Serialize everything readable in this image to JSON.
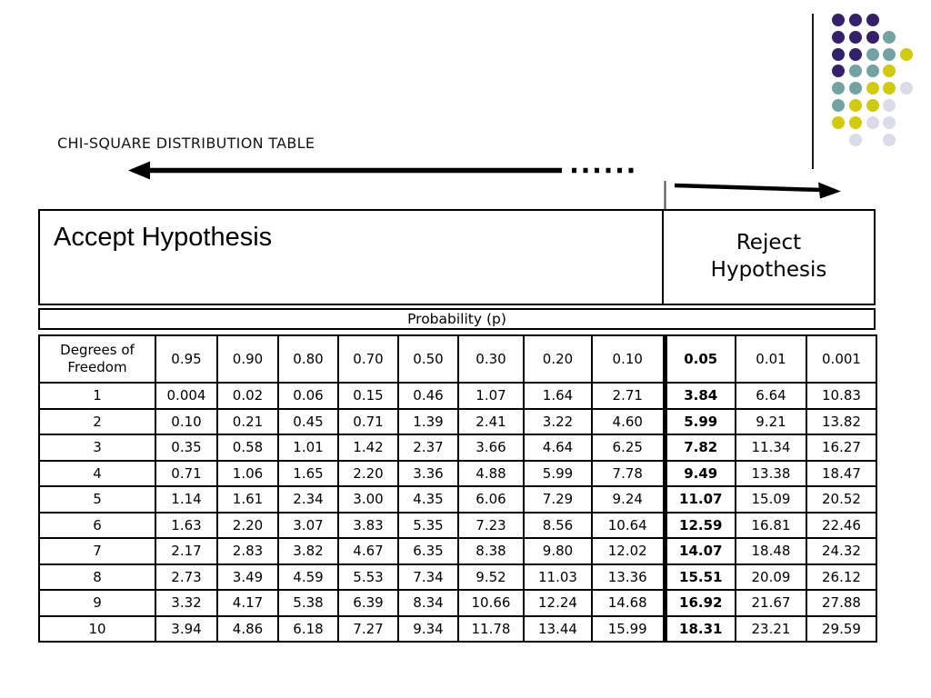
{
  "slide": {
    "title": "CHI-SQUARE DISTRIBUTION TABLE"
  },
  "decor": {
    "dot_colors": {
      "P": "#35206b",
      "T": "#74a2a2",
      "Y": "#d0ca12",
      "L": "#dbdbe9"
    },
    "dot_pattern": [
      "PPP..",
      "PPPT.",
      "PPTTY",
      "PTTY.",
      "TTYYL",
      "TYYL.",
      "YYLL.",
      ".L.L."
    ],
    "icons": [
      "accept-direction-arrow",
      "dashed-arrow-tail",
      "reject-direction-arrow"
    ]
  },
  "regions": {
    "accept_label": "Accept Hypothesis",
    "reject_label": "Reject Hypothesis"
  },
  "table": {
    "probability_label": "Probability (p)",
    "dof_header": "Degrees of Freedom",
    "prob_columns": [
      "0.95",
      "0.90",
      "0.80",
      "0.70",
      "0.50",
      "0.30",
      "0.20",
      "0.10",
      "0.05",
      "0.01",
      "0.001"
    ],
    "bold_column_index": 8,
    "rows": [
      {
        "df": "1",
        "values": [
          "0.004",
          "0.02",
          "0.06",
          "0.15",
          "0.46",
          "1.07",
          "1.64",
          "2.71",
          "3.84",
          "6.64",
          "10.83"
        ]
      },
      {
        "df": "2",
        "values": [
          "0.10",
          "0.21",
          "0.45",
          "0.71",
          "1.39",
          "2.41",
          "3.22",
          "4.60",
          "5.99",
          "9.21",
          "13.82"
        ]
      },
      {
        "df": "3",
        "values": [
          "0.35",
          "0.58",
          "1.01",
          "1.42",
          "2.37",
          "3.66",
          "4.64",
          "6.25",
          "7.82",
          "11.34",
          "16.27"
        ]
      },
      {
        "df": "4",
        "values": [
          "0.71",
          "1.06",
          "1.65",
          "2.20",
          "3.36",
          "4.88",
          "5.99",
          "7.78",
          "9.49",
          "13.38",
          "18.47"
        ]
      },
      {
        "df": "5",
        "values": [
          "1.14",
          "1.61",
          "2.34",
          "3.00",
          "4.35",
          "6.06",
          "7.29",
          "9.24",
          "11.07",
          "15.09",
          "20.52"
        ]
      },
      {
        "df": "6",
        "values": [
          "1.63",
          "2.20",
          "3.07",
          "3.83",
          "5.35",
          "7.23",
          "8.56",
          "10.64",
          "12.59",
          "16.81",
          "22.46"
        ]
      },
      {
        "df": "7",
        "values": [
          "2.17",
          "2.83",
          "3.82",
          "4.67",
          "6.35",
          "8.38",
          "9.80",
          "12.02",
          "14.07",
          "18.48",
          "24.32"
        ]
      },
      {
        "df": "8",
        "values": [
          "2.73",
          "3.49",
          "4.59",
          "5.53",
          "7.34",
          "9.52",
          "11.03",
          "13.36",
          "15.51",
          "20.09",
          "26.12"
        ]
      },
      {
        "df": "9",
        "values": [
          "3.32",
          "4.17",
          "5.38",
          "6.39",
          "8.34",
          "10.66",
          "12.24",
          "14.68",
          "16.92",
          "21.67",
          "27.88"
        ]
      },
      {
        "df": "10",
        "values": [
          "3.94",
          "4.86",
          "6.18",
          "7.27",
          "9.34",
          "11.78",
          "13.44",
          "15.99",
          "18.31",
          "23.21",
          "29.59"
        ]
      }
    ]
  }
}
